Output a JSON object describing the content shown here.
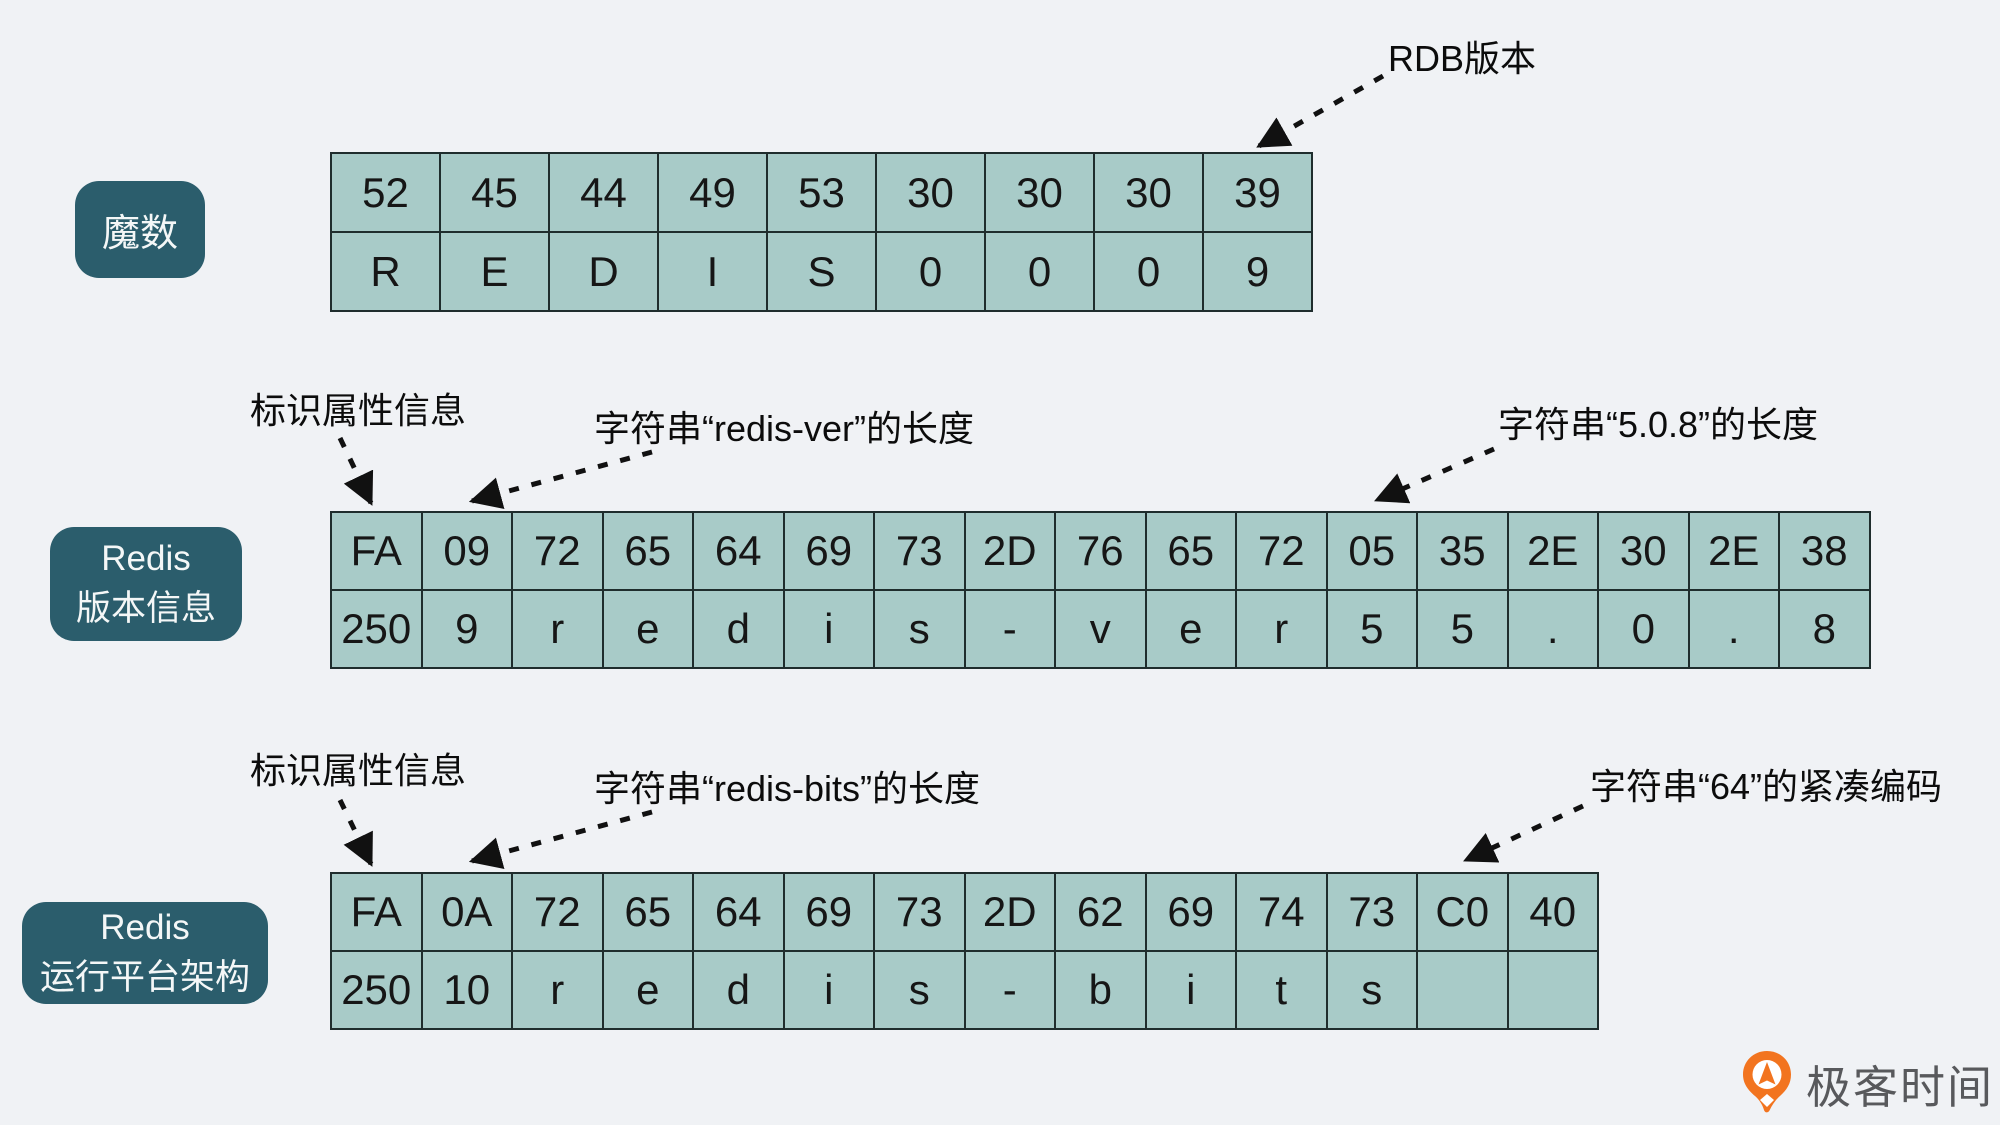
{
  "background_color": "#f0f2f5",
  "cell_color": "#a8cbc8",
  "grid_line_color": "#1f2d2d",
  "label_box_color": "#2b5d6c",
  "logo_orange": "#f2741f",
  "sections": {
    "magic": {
      "label": "魔数",
      "hex": [
        "52",
        "45",
        "44",
        "49",
        "53",
        "30",
        "30",
        "30",
        "39"
      ],
      "chars": [
        "R",
        "E",
        "D",
        "I",
        "S",
        "0",
        "0",
        "0",
        "9"
      ],
      "annotation_rdb_version": "RDB版本"
    },
    "version": {
      "label_line1": "Redis",
      "label_line2": "版本信息",
      "hex": [
        "FA",
        "09",
        "72",
        "65",
        "64",
        "69",
        "73",
        "2D",
        "76",
        "65",
        "72",
        "05",
        "35",
        "2E",
        "30",
        "2E",
        "38"
      ],
      "chars": [
        "250",
        "9",
        "r",
        "e",
        "d",
        "i",
        "s",
        "-",
        "v",
        "e",
        "r",
        "5",
        "5",
        ".",
        "0",
        ".",
        "8"
      ],
      "annotation_attr": "标识属性信息",
      "annotation_key_len": "字符串“redis-ver”的长度",
      "annotation_val_len": "字符串“5.0.8”的长度"
    },
    "arch": {
      "label_line1": "Redis",
      "label_line2": "运行平台架构",
      "hex": [
        "FA",
        "0A",
        "72",
        "65",
        "64",
        "69",
        "73",
        "2D",
        "62",
        "69",
        "74",
        "73",
        "C0",
        "40"
      ],
      "chars": [
        "250",
        "10",
        "r",
        "e",
        "d",
        "i",
        "s",
        "-",
        "b",
        "i",
        "t",
        "s",
        "",
        ""
      ],
      "annotation_attr": "标识属性信息",
      "annotation_key_len": "字符串“redis-bits”的长度",
      "annotation_val_enc": "字符串“64”的紧凑编码"
    }
  },
  "logo": {
    "text": "极客时间"
  }
}
